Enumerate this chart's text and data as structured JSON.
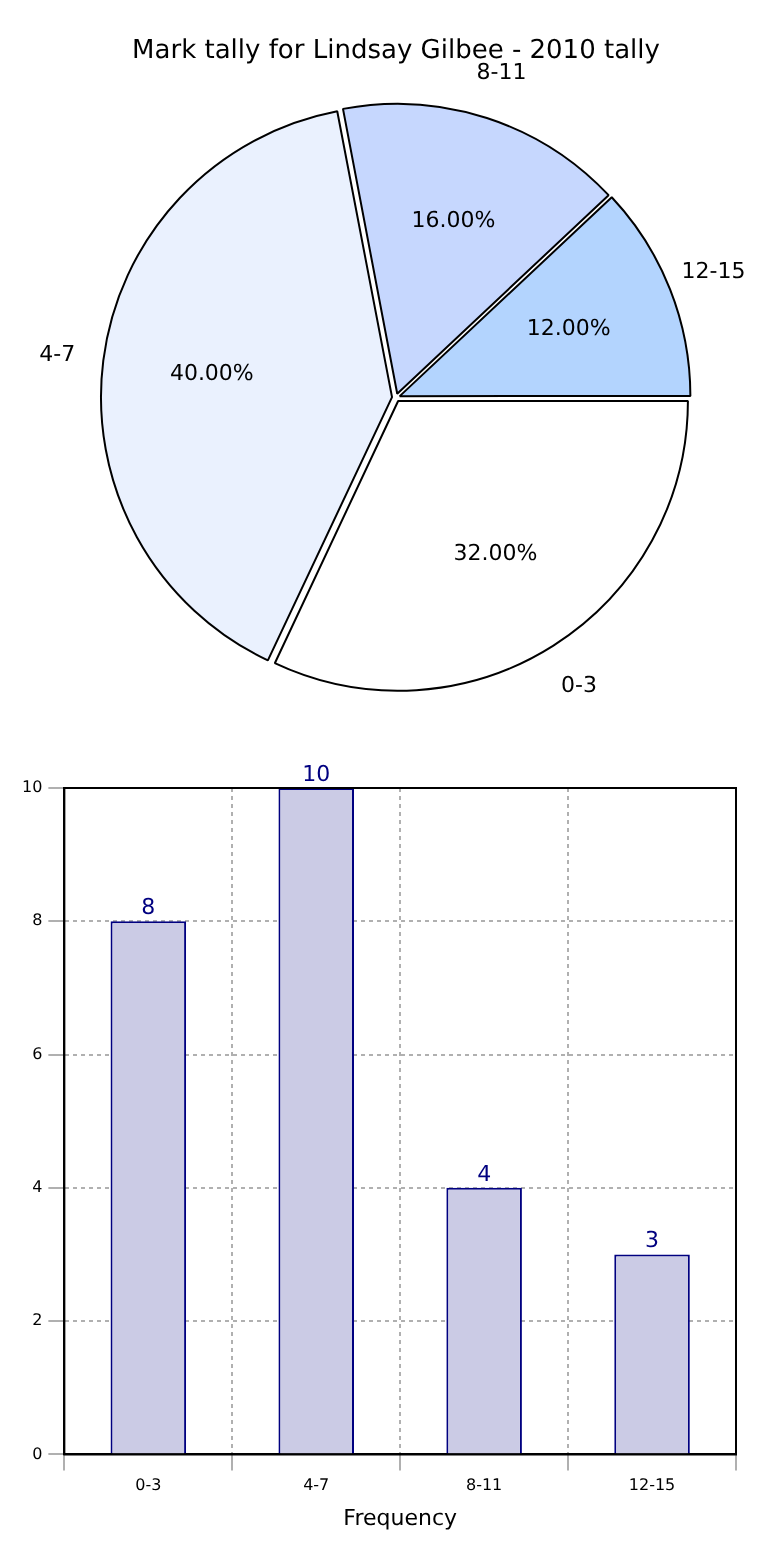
{
  "chart_data": [
    {
      "type": "pie",
      "title": "Mark tally for Lindsay Gilbee - 2010 tally",
      "categories": [
        "0-3",
        "4-7",
        "8-11",
        "12-15"
      ],
      "values": [
        32,
        40,
        16,
        12
      ],
      "colors": [
        "#ffffff",
        "#eaf1fe",
        "#c6d7fe",
        "#b3d4fe"
      ],
      "value_labels": [
        "32.00%",
        "40.00%",
        "16.00%",
        "12.00%"
      ],
      "legend": false
    },
    {
      "type": "bar",
      "categories": [
        "0-3",
        "4-7",
        "8-11",
        "12-15"
      ],
      "values": [
        8,
        10,
        4,
        3
      ],
      "color": "#cbcbe5",
      "xlabel": "Frequency",
      "ylim": [
        0,
        10
      ],
      "yticks": [
        0,
        2,
        4,
        6,
        8,
        10
      ],
      "grid": true,
      "data_labels": true,
      "legend": false
    }
  ]
}
